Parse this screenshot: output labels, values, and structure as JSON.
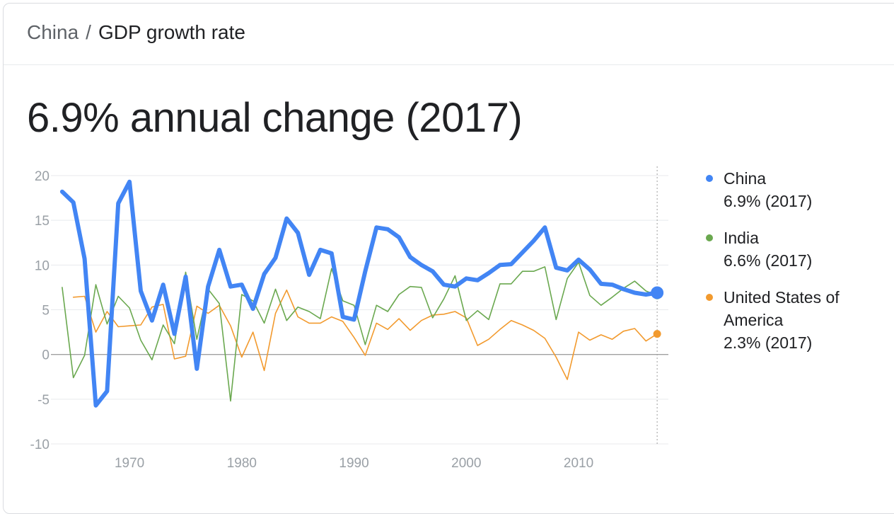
{
  "breadcrumb": {
    "country": "China",
    "separator": "/",
    "metric": "GDP growth rate"
  },
  "headline": "6.9% annual change (2017)",
  "colors": {
    "china": "#4285f4",
    "india": "#6aa84f",
    "usa": "#f29a2e",
    "grid": "#e8eaed",
    "axis_text": "#9aa0a6"
  },
  "legend": [
    {
      "name": "China",
      "value": "6.9% (2017)",
      "color": "#4285f4"
    },
    {
      "name": "India",
      "value": "6.6% (2017)",
      "color": "#6aa84f"
    },
    {
      "name": "United States of America",
      "value": "2.3% (2017)",
      "color": "#f29a2e"
    }
  ],
  "chart_data": {
    "type": "line",
    "title": "",
    "xlabel": "",
    "ylabel": "",
    "xlim": [
      1963,
      2018
    ],
    "ylim": [
      -10,
      20
    ],
    "y_ticks": [
      20,
      15,
      10,
      5,
      0,
      -5,
      -10
    ],
    "x_ticks": [
      1970,
      1980,
      1990,
      2000,
      2010
    ],
    "grid": true,
    "highlight_year": 2017,
    "legend_position": "right",
    "series": [
      {
        "name": "China",
        "color": "#4285f4",
        "width": 6,
        "x": [
          1964,
          1965,
          1966,
          1967,
          1968,
          1969,
          1970,
          1971,
          1972,
          1973,
          1974,
          1975,
          1976,
          1977,
          1978,
          1979,
          1980,
          1981,
          1982,
          1983,
          1984,
          1985,
          1986,
          1987,
          1988,
          1989,
          1990,
          1991,
          1992,
          1993,
          1994,
          1995,
          1996,
          1997,
          1998,
          1999,
          2000,
          2001,
          2002,
          2003,
          2004,
          2005,
          2006,
          2007,
          2008,
          2009,
          2010,
          2011,
          2012,
          2013,
          2014,
          2015,
          2016,
          2017
        ],
        "y": [
          18.2,
          17.0,
          10.7,
          -5.7,
          -4.1,
          16.9,
          19.3,
          7.1,
          3.8,
          7.8,
          2.3,
          8.7,
          -1.6,
          7.6,
          11.7,
          7.6,
          7.8,
          5.1,
          9.0,
          10.8,
          15.2,
          13.6,
          8.9,
          11.7,
          11.3,
          4.2,
          3.9,
          9.3,
          14.2,
          14.0,
          13.1,
          10.9,
          10.0,
          9.3,
          7.8,
          7.6,
          8.5,
          8.3,
          9.1,
          10.0,
          10.1,
          11.4,
          12.7,
          14.2,
          9.7,
          9.4,
          10.6,
          9.5,
          7.9,
          7.8,
          7.3,
          6.9,
          6.7,
          6.9
        ]
      },
      {
        "name": "India",
        "color": "#6aa84f",
        "width": 1.6,
        "x": [
          1964,
          1965,
          1966,
          1967,
          1968,
          1969,
          1970,
          1971,
          1972,
          1973,
          1974,
          1975,
          1976,
          1977,
          1978,
          1979,
          1980,
          1981,
          1982,
          1983,
          1984,
          1985,
          1986,
          1987,
          1988,
          1989,
          1990,
          1991,
          1992,
          1993,
          1994,
          1995,
          1996,
          1997,
          1998,
          1999,
          2000,
          2001,
          2002,
          2003,
          2004,
          2005,
          2006,
          2007,
          2008,
          2009,
          2010,
          2011,
          2012,
          2013,
          2014,
          2015,
          2016,
          2017
        ],
        "y": [
          7.5,
          -2.6,
          -0.1,
          7.8,
          3.4,
          6.5,
          5.2,
          1.6,
          -0.6,
          3.3,
          1.2,
          9.2,
          1.7,
          7.3,
          5.7,
          -5.2,
          6.7,
          6.0,
          3.5,
          7.3,
          3.8,
          5.3,
          4.8,
          4.0,
          9.6,
          6.0,
          5.5,
          1.1,
          5.5,
          4.8,
          6.7,
          7.6,
          7.5,
          4.1,
          6.2,
          8.8,
          3.8,
          4.9,
          3.9,
          7.9,
          7.9,
          9.3,
          9.3,
          9.8,
          3.9,
          8.5,
          10.3,
          6.6,
          5.5,
          6.4,
          7.4,
          8.2,
          7.1,
          6.6
        ]
      },
      {
        "name": "United States of America",
        "color": "#f29a2e",
        "width": 1.6,
        "x": [
          1965,
          1966,
          1967,
          1968,
          1969,
          1970,
          1971,
          1972,
          1973,
          1974,
          1975,
          1976,
          1977,
          1978,
          1979,
          1980,
          1981,
          1982,
          1983,
          1984,
          1985,
          1986,
          1987,
          1988,
          1989,
          1990,
          1991,
          1992,
          1993,
          1994,
          1995,
          1996,
          1997,
          1998,
          1999,
          2000,
          2001,
          2002,
          2003,
          2004,
          2005,
          2006,
          2007,
          2008,
          2009,
          2010,
          2011,
          2012,
          2013,
          2014,
          2015,
          2016,
          2017
        ],
        "y": [
          6.4,
          6.5,
          2.5,
          4.8,
          3.1,
          3.2,
          3.3,
          5.3,
          5.6,
          -0.5,
          -0.2,
          5.4,
          4.6,
          5.5,
          3.2,
          -0.3,
          2.5,
          -1.8,
          4.6,
          7.2,
          4.2,
          3.5,
          3.5,
          4.2,
          3.7,
          1.9,
          -0.1,
          3.5,
          2.8,
          4.0,
          2.7,
          3.8,
          4.4,
          4.5,
          4.8,
          4.1,
          1.0,
          1.7,
          2.8,
          3.8,
          3.3,
          2.7,
          1.8,
          -0.3,
          -2.8,
          2.5,
          1.6,
          2.2,
          1.7,
          2.6,
          2.9,
          1.5,
          2.3
        ]
      }
    ]
  }
}
